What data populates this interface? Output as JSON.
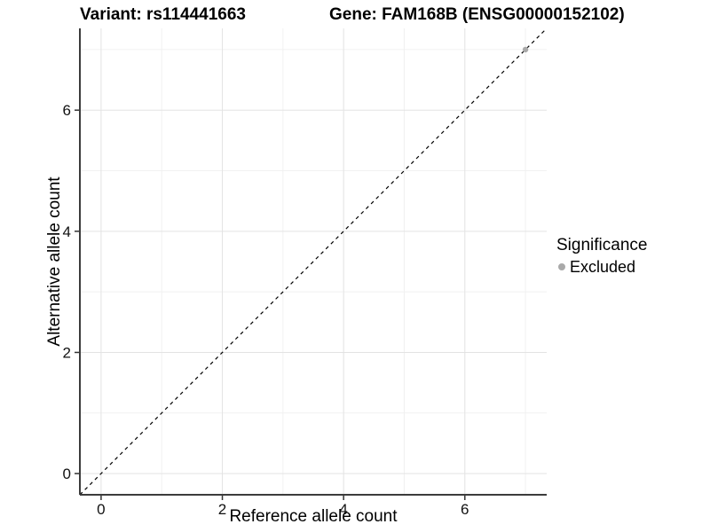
{
  "titles": {
    "left": "Variant: rs114441663",
    "right": "Gene: FAM168B (ENSG00000152102)"
  },
  "chart_data": {
    "type": "scatter",
    "title_left": "Variant: rs114441663",
    "title_right": "Gene: FAM168B (ENSG00000152102)",
    "xlabel": "Reference allele count",
    "ylabel": "Alternative allele count",
    "xlim": [
      -0.35,
      7.35
    ],
    "ylim": [
      -0.35,
      7.35
    ],
    "major_ticks": [
      0,
      2,
      4,
      6
    ],
    "minor_breaks": [
      1,
      3,
      5,
      7
    ],
    "grid": "on",
    "identity_line": {
      "style": "dashed",
      "slope": 1,
      "intercept": 0,
      "color": "#000000"
    },
    "series": [
      {
        "name": "Excluded",
        "color": "#a9a9a9",
        "points": [
          {
            "x": 7,
            "y": 7
          }
        ]
      }
    ],
    "legend": {
      "title": "Significance",
      "position": "right",
      "items": [
        {
          "label": "Excluded",
          "color": "#a9a9a9"
        }
      ]
    }
  },
  "colors": {
    "background": "#ffffff",
    "grid_major": "#e3e3e3",
    "grid_minor": "#f1f1f1",
    "axis_line": "#3c3c3c",
    "tick_mark": "#333333",
    "tick_label": "#111111",
    "text": "#000000"
  }
}
